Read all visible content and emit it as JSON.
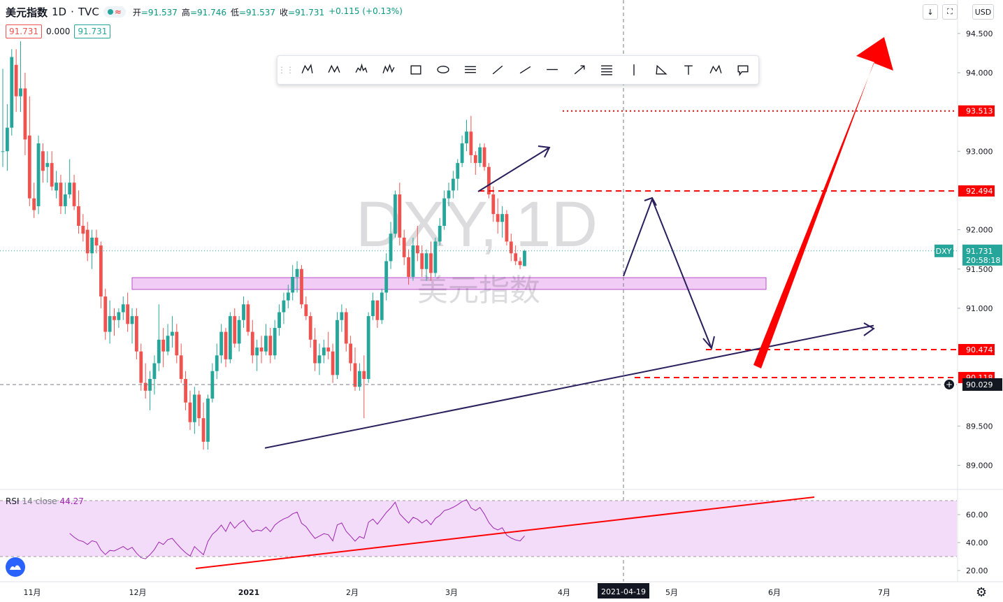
{
  "header": {
    "title": "美元指数",
    "interval": "1D",
    "source": "TVC",
    "ohlc": {
      "open_label": "开",
      "open": "=91.537",
      "high_label": "高",
      "high": "=91.746",
      "low_label": "低",
      "low": "=91.537",
      "close_label": "收",
      "close": "=91.731",
      "change": "+0.115 (+0.13%)"
    },
    "sell": "91.731",
    "spread": "0.000",
    "buy": "91.731",
    "currency_button": "USD"
  },
  "watermark": {
    "symbol": "DXY, 1D",
    "name": "美元指数"
  },
  "rsi": {
    "label": "RSI",
    "params": "14 close",
    "value": "44.27"
  },
  "colors": {
    "up": "#26a69a",
    "down": "#ef5350",
    "zone": "#e1b3ea",
    "rsi_line": "#9c27b0",
    "annotation_red": "#ff0000",
    "annotation_dark": "#2a1f5c"
  },
  "icons": {
    "toolbar": [
      "xabcd-pattern-icon",
      "cypher-pattern-icon",
      "head-shoulders-icon",
      "elliott-wave-icon",
      "rectangle-icon",
      "ellipse-icon",
      "fib-retracement-icon",
      "trend-line-icon",
      "ray-icon",
      "horizontal-line-icon",
      "arrow-icon",
      "parallel-channel-icon",
      "vertical-line-icon",
      "triangle-icon",
      "text-icon",
      "abcd-pattern-icon",
      "callout-icon"
    ],
    "top_right": [
      "download-icon",
      "fullscreen-icon"
    ]
  },
  "chart_data": {
    "type": "candlestick",
    "title": "美元指数",
    "x_tick_labels": [
      "11月",
      "12月",
      "2021",
      "2月",
      "3月",
      "4月",
      "5月",
      "6月",
      "7月"
    ],
    "crosshair_date": "2021-04-19",
    "y_ticks": [
      "94.500",
      "94.000",
      "93.000",
      "92.000",
      "91.500",
      "91.000",
      "89.500",
      "89.000"
    ],
    "ylim": [
      88.62,
      94.8
    ],
    "last_price": {
      "label": "DXY",
      "value": "91.731",
      "countdown": "20:58:18"
    },
    "price_labels": [
      {
        "value": "93.513",
        "style": "dotted"
      },
      {
        "value": "92.494",
        "style": "dashed"
      },
      {
        "value": "90.474",
        "style": "dashed"
      },
      {
        "value": "90.118",
        "style": "dashed"
      },
      {
        "value": "90.029",
        "style": "crosshair"
      }
    ],
    "support_zone": {
      "from": 91.24,
      "to": 91.39
    },
    "candles": [
      [
        93.0,
        94.05,
        92.8,
        93.0
      ],
      [
        93.0,
        93.6,
        92.75,
        93.3
      ],
      [
        93.3,
        94.3,
        93.2,
        94.2
      ],
      [
        94.1,
        94.3,
        93.5,
        93.7
      ],
      [
        93.7,
        94.4,
        93.5,
        93.8
      ],
      [
        93.8,
        94.0,
        92.95,
        93.15
      ],
      [
        93.2,
        93.7,
        92.3,
        92.4
      ],
      [
        92.4,
        92.6,
        92.15,
        92.25
      ],
      [
        92.3,
        93.2,
        92.2,
        93.1
      ],
      [
        93.0,
        93.1,
        92.6,
        92.75
      ],
      [
        92.8,
        93.0,
        92.6,
        92.85
      ],
      [
        92.85,
        93.0,
        92.5,
        92.55
      ],
      [
        92.5,
        92.75,
        92.4,
        92.6
      ],
      [
        92.6,
        92.7,
        92.2,
        92.3
      ],
      [
        92.3,
        92.6,
        92.2,
        92.45
      ],
      [
        92.45,
        92.9,
        92.4,
        92.6
      ],
      [
        92.6,
        92.7,
        92.25,
        92.3
      ],
      [
        92.3,
        92.5,
        91.95,
        92.05
      ],
      [
        92.05,
        92.2,
        91.85,
        91.95
      ],
      [
        92.0,
        92.1,
        91.6,
        91.7
      ],
      [
        91.7,
        92.0,
        91.5,
        91.9
      ],
      [
        91.9,
        92.0,
        91.7,
        91.8
      ],
      [
        91.8,
        91.85,
        91.0,
        91.15
      ],
      [
        91.15,
        91.25,
        90.6,
        90.7
      ],
      [
        90.7,
        91.1,
        90.55,
        90.9
      ],
      [
        90.9,
        91.0,
        90.65,
        90.85
      ],
      [
        90.85,
        91.0,
        90.75,
        90.95
      ],
      [
        90.95,
        91.15,
        90.85,
        91.05
      ],
      [
        91.05,
        91.2,
        90.7,
        90.8
      ],
      [
        90.8,
        91.0,
        90.55,
        90.9
      ],
      [
        90.9,
        91.0,
        90.35,
        90.45
      ],
      [
        90.45,
        90.55,
        89.95,
        90.05
      ],
      [
        90.05,
        90.3,
        89.85,
        89.95
      ],
      [
        89.95,
        90.2,
        89.7,
        90.1
      ],
      [
        90.1,
        90.4,
        89.9,
        90.3
      ],
      [
        90.3,
        91.05,
        90.2,
        90.6
      ],
      [
        90.6,
        90.75,
        90.25,
        90.45
      ],
      [
        90.45,
        90.8,
        90.4,
        90.65
      ],
      [
        90.65,
        90.9,
        90.5,
        90.7
      ],
      [
        90.7,
        90.8,
        90.3,
        90.4
      ],
      [
        90.4,
        90.55,
        90.05,
        90.1
      ],
      [
        90.1,
        90.2,
        89.7,
        89.8
      ],
      [
        89.8,
        89.95,
        89.45,
        89.55
      ],
      [
        89.55,
        90.0,
        89.4,
        89.9
      ],
      [
        89.9,
        89.95,
        89.5,
        89.6
      ],
      [
        89.6,
        89.8,
        89.2,
        89.3
      ],
      [
        89.3,
        89.9,
        89.2,
        89.85
      ],
      [
        89.85,
        90.3,
        89.8,
        90.2
      ],
      [
        90.2,
        90.55,
        90.1,
        90.4
      ],
      [
        90.4,
        90.8,
        90.3,
        90.7
      ],
      [
        90.7,
        90.75,
        90.25,
        90.35
      ],
      [
        90.35,
        90.95,
        90.3,
        90.9
      ],
      [
        90.9,
        91.0,
        90.5,
        90.55
      ],
      [
        90.55,
        90.9,
        90.45,
        90.85
      ],
      [
        90.85,
        91.15,
        90.75,
        91.05
      ],
      [
        91.05,
        91.1,
        90.65,
        90.7
      ],
      [
        90.7,
        90.85,
        90.3,
        90.4
      ],
      [
        90.4,
        90.6,
        90.2,
        90.5
      ],
      [
        90.5,
        90.65,
        90.3,
        90.45
      ],
      [
        90.45,
        90.8,
        90.4,
        90.65
      ],
      [
        90.65,
        90.75,
        90.3,
        90.4
      ],
      [
        90.4,
        90.85,
        90.35,
        90.75
      ],
      [
        90.75,
        91.05,
        90.65,
        90.95
      ],
      [
        90.95,
        91.2,
        90.8,
        91.1
      ],
      [
        91.1,
        91.3,
        91.0,
        91.2
      ],
      [
        91.2,
        91.55,
        91.1,
        91.4
      ],
      [
        91.4,
        91.6,
        91.2,
        91.5
      ],
      [
        91.5,
        91.55,
        91.0,
        91.05
      ],
      [
        91.05,
        91.15,
        90.85,
        90.9
      ],
      [
        90.9,
        90.95,
        90.5,
        90.6
      ],
      [
        90.6,
        90.75,
        90.2,
        90.3
      ],
      [
        90.3,
        90.55,
        90.15,
        90.4
      ],
      [
        90.4,
        90.6,
        90.3,
        90.5
      ],
      [
        90.5,
        90.7,
        90.35,
        90.45
      ],
      [
        90.45,
        90.55,
        90.05,
        90.15
      ],
      [
        90.15,
        90.95,
        90.1,
        90.85
      ],
      [
        90.85,
        91.05,
        90.7,
        90.95
      ],
      [
        90.95,
        91.0,
        90.45,
        90.55
      ],
      [
        90.55,
        90.65,
        90.2,
        90.3
      ],
      [
        90.3,
        90.5,
        89.95,
        90.0
      ],
      [
        90.0,
        90.3,
        89.95,
        90.2
      ],
      [
        90.2,
        90.4,
        89.6,
        90.1
      ],
      [
        90.1,
        90.95,
        90.05,
        90.9
      ],
      [
        90.9,
        91.2,
        90.85,
        91.1
      ],
      [
        91.1,
        91.1,
        90.75,
        90.85
      ],
      [
        90.85,
        91.25,
        90.8,
        91.2
      ],
      [
        91.2,
        91.7,
        91.1,
        91.6
      ],
      [
        91.6,
        92.1,
        91.5,
        91.95
      ],
      [
        91.95,
        92.5,
        91.9,
        92.45
      ],
      [
        92.45,
        92.6,
        91.8,
        91.9
      ],
      [
        91.9,
        92.0,
        91.55,
        91.65
      ],
      [
        91.65,
        91.75,
        91.3,
        91.4
      ],
      [
        91.4,
        91.9,
        91.35,
        91.8
      ],
      [
        91.8,
        92.05,
        91.6,
        91.7
      ],
      [
        91.7,
        91.8,
        91.4,
        91.5
      ],
      [
        91.5,
        91.75,
        91.35,
        91.7
      ],
      [
        91.7,
        91.85,
        91.35,
        91.45
      ],
      [
        91.45,
        91.9,
        91.4,
        91.85
      ],
      [
        91.85,
        92.15,
        91.8,
        92.05
      ],
      [
        92.05,
        92.5,
        92.0,
        92.4
      ],
      [
        92.4,
        92.6,
        92.3,
        92.5
      ],
      [
        92.5,
        92.75,
        92.4,
        92.65
      ],
      [
        92.65,
        92.9,
        92.5,
        92.85
      ],
      [
        92.85,
        93.2,
        92.8,
        93.1
      ],
      [
        93.1,
        93.4,
        93.0,
        93.25
      ],
      [
        93.25,
        93.45,
        92.85,
        92.95
      ],
      [
        92.95,
        93.0,
        92.7,
        92.85
      ],
      [
        92.85,
        93.1,
        92.8,
        93.05
      ],
      [
        93.05,
        93.1,
        92.75,
        92.8
      ],
      [
        92.8,
        92.85,
        92.4,
        92.45
      ],
      [
        92.45,
        92.55,
        92.1,
        92.2
      ],
      [
        92.2,
        92.4,
        91.95,
        92.1
      ],
      [
        92.1,
        92.3,
        91.9,
        92.2
      ],
      [
        92.2,
        92.25,
        91.8,
        91.85
      ],
      [
        91.85,
        91.95,
        91.6,
        91.7
      ],
      [
        91.7,
        91.8,
        91.55,
        91.6
      ],
      [
        91.6,
        91.65,
        91.5,
        91.55
      ],
      [
        91.537,
        91.746,
        91.537,
        91.731
      ]
    ],
    "rsi_levels": {
      "upper": 70,
      "lower": 30,
      "y_ticks": [
        "60.00",
        "40.00",
        "20.00"
      ]
    }
  }
}
